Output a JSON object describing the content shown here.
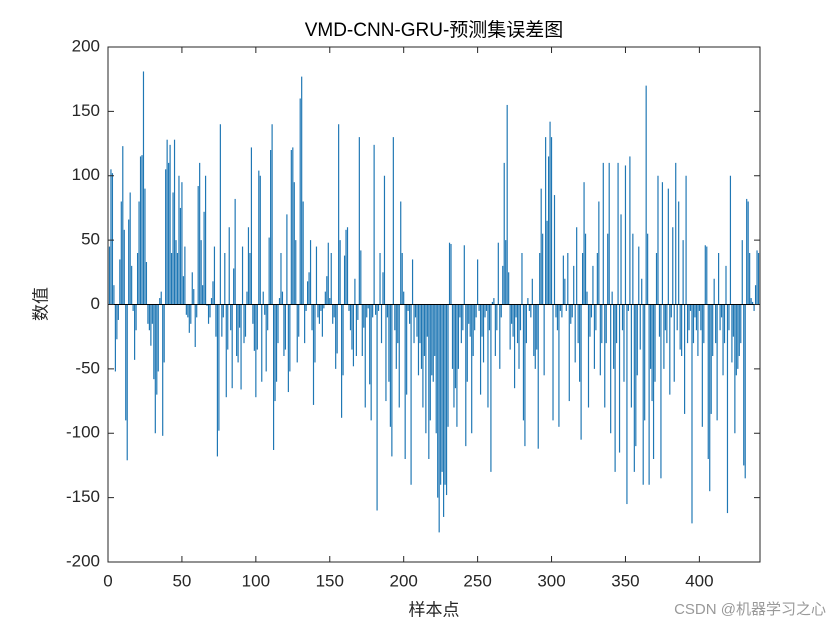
{
  "chart_data": {
    "type": "bar",
    "title": "VMD-CNN-GRU-预测集误差图",
    "xlabel": "样本点",
    "ylabel": "数值",
    "watermark": "CSDN @机器学习之心",
    "color": "#1f77b4",
    "xlim": [
      0,
      441
    ],
    "ylim": [
      -200,
      200
    ],
    "xticks": [
      0,
      50,
      100,
      150,
      200,
      250,
      300,
      350,
      400
    ],
    "yticks": [
      -200,
      -150,
      -100,
      -50,
      0,
      50,
      100,
      150,
      200
    ],
    "x": [
      1,
      2,
      3,
      4,
      5,
      6,
      7,
      8,
      9,
      10,
      11,
      12,
      13,
      14,
      15,
      16,
      17,
      18,
      19,
      20,
      21,
      22,
      23,
      24,
      25,
      26,
      27,
      28,
      29,
      30,
      31,
      32,
      33,
      34,
      35,
      36,
      37,
      38,
      39,
      40,
      41,
      42,
      43,
      44,
      45,
      46,
      47,
      48,
      49,
      50,
      51,
      52,
      53,
      54,
      55,
      56,
      57,
      58,
      59,
      60,
      61,
      62,
      63,
      64,
      65,
      66,
      67,
      68,
      69,
      70,
      71,
      72,
      73,
      74,
      75,
      76,
      77,
      78,
      79,
      80,
      81,
      82,
      83,
      84,
      85,
      86,
      87,
      88,
      89,
      90,
      91,
      92,
      93,
      94,
      95,
      96,
      97,
      98,
      99,
      100,
      101,
      102,
      103,
      104,
      105,
      106,
      107,
      108,
      109,
      110,
      111,
      112,
      113,
      114,
      115,
      116,
      117,
      118,
      119,
      120,
      121,
      122,
      123,
      124,
      125,
      126,
      127,
      128,
      129,
      130,
      131,
      132,
      133,
      134,
      135,
      136,
      137,
      138,
      139,
      140,
      141,
      142,
      143,
      144,
      145,
      146,
      147,
      148,
      149,
      150,
      151,
      152,
      153,
      154,
      155,
      156,
      157,
      158,
      159,
      160,
      161,
      162,
      163,
      164,
      165,
      166,
      167,
      168,
      169,
      170,
      171,
      172,
      173,
      174,
      175,
      176,
      177,
      178,
      179,
      180,
      181,
      182,
      183,
      184,
      185,
      186,
      187,
      188,
      189,
      190,
      191,
      192,
      193,
      194,
      195,
      196,
      197,
      198,
      199,
      200,
      201,
      202,
      203,
      204,
      205,
      206,
      207,
      208,
      209,
      210,
      211,
      212,
      213,
      214,
      215,
      216,
      217,
      218,
      219,
      220,
      221,
      222,
      223,
      224,
      225,
      226,
      227,
      228,
      229,
      230,
      231,
      232,
      233,
      234,
      235,
      236,
      237,
      238,
      239,
      240,
      241,
      242,
      243,
      244,
      245,
      246,
      247,
      248,
      249,
      250,
      251,
      252,
      253,
      254,
      255,
      256,
      257,
      258,
      259,
      260,
      261,
      262,
      263,
      264,
      265,
      266,
      267,
      268,
      269,
      270,
      271,
      272,
      273,
      274,
      275,
      276,
      277,
      278,
      279,
      280,
      281,
      282,
      283,
      284,
      285,
      286,
      287,
      288,
      289,
      290,
      291,
      292,
      293,
      294,
      295,
      296,
      297,
      298,
      299,
      300,
      301,
      302,
      303,
      304,
      305,
      306,
      307,
      308,
      309,
      310,
      311,
      312,
      313,
      314,
      315,
      316,
      317,
      318,
      319,
      320,
      321,
      322,
      323,
      324,
      325,
      326,
      327,
      328,
      329,
      330,
      331,
      332,
      333,
      334,
      335,
      336,
      337,
      338,
      339,
      340,
      341,
      342,
      343,
      344,
      345,
      346,
      347,
      348,
      349,
      350,
      351,
      352,
      353,
      354,
      355,
      356,
      357,
      358,
      359,
      360,
      361,
      362,
      363,
      364,
      365,
      366,
      367,
      368,
      369,
      370,
      371,
      372,
      373,
      374,
      375,
      376,
      377,
      378,
      379,
      380,
      381,
      382,
      383,
      384,
      385,
      386,
      387,
      388,
      389,
      390,
      391,
      392,
      393,
      394,
      395,
      396,
      397,
      398,
      399,
      400,
      401,
      402,
      403,
      404,
      405,
      406,
      407,
      408,
      409,
      410,
      411,
      412,
      413,
      414,
      415,
      416,
      417,
      418,
      419,
      420,
      421,
      422,
      423,
      424,
      425,
      426,
      427,
      428,
      429,
      430,
      431,
      432,
      433,
      434,
      435,
      436,
      437,
      438,
      439,
      440
    ],
    "values": [
      45,
      105,
      102,
      15,
      -52,
      -27,
      -12,
      35,
      80,
      123,
      58,
      -90,
      -121,
      66,
      87,
      30,
      -5,
      -43,
      -20,
      40,
      80,
      115,
      116,
      181,
      90,
      33,
      -15,
      -20,
      -32,
      -15,
      -58,
      -100,
      -70,
      -52,
      5,
      10,
      -102,
      -45,
      105,
      128,
      110,
      124,
      40,
      87,
      128,
      50,
      40,
      100,
      75,
      95,
      22,
      45,
      -8,
      -10,
      -22,
      -15,
      25,
      12,
      -33,
      -10,
      92,
      110,
      50,
      15,
      72,
      100,
      -1,
      -15,
      -10,
      5,
      18,
      45,
      -25,
      -118,
      -98,
      140,
      -25,
      -10,
      40,
      -72,
      -35,
      60,
      -20,
      -65,
      28,
      82,
      -40,
      -45,
      -18,
      -66,
      45,
      -30,
      -25,
      10,
      60,
      40,
      122,
      -15,
      -36,
      -72,
      -35,
      104,
      100,
      -60,
      10,
      -8,
      -52,
      -20,
      52,
      120,
      140,
      -113,
      -75,
      -60,
      -30,
      5,
      40,
      10,
      -40,
      -35,
      70,
      -68,
      -52,
      120,
      122,
      95,
      50,
      -45,
      -25,
      160,
      177,
      80,
      -30,
      -5,
      18,
      25,
      50,
      -20,
      -78,
      -45,
      45,
      -10,
      -15,
      -5,
      -25,
      -3,
      10,
      22,
      48,
      5,
      40,
      -15,
      -10,
      -50,
      -38,
      140,
      50,
      -88,
      -55,
      38,
      58,
      60,
      -5,
      -20,
      -35,
      -48,
      20,
      -40,
      -12,
      130,
      42,
      -40,
      -18,
      -80,
      -10,
      -3,
      -62,
      -90,
      -10,
      124,
      -8,
      -160,
      -5,
      40,
      -30,
      25,
      100,
      -75,
      -10,
      -60,
      -95,
      -118,
      130,
      -20,
      -50,
      -30,
      -80,
      80,
      40,
      10,
      -120,
      -70,
      -5,
      -15,
      -140,
      35,
      -30,
      -10,
      -25,
      -55,
      -30,
      -50,
      -80,
      -40,
      -100,
      -25,
      -120,
      -90,
      -55,
      -60,
      -40,
      -100,
      -150,
      -177,
      -140,
      -130,
      -165,
      -140,
      -148,
      -95,
      48,
      47,
      -50,
      -80,
      -65,
      -95,
      -50,
      -10,
      -30,
      -20,
      46,
      -110,
      -60,
      -15,
      -25,
      -100,
      -40,
      -20,
      -10,
      35,
      -5,
      -70,
      -25,
      -45,
      -10,
      -5,
      -80,
      -20,
      -130,
      2,
      5,
      -40,
      -20,
      48,
      -50,
      -10,
      30,
      110,
      50,
      155,
      25,
      -35,
      -15,
      -25,
      -65,
      -10,
      -30,
      -50,
      -20,
      40,
      -90,
      -110,
      -30,
      5,
      -5,
      -10,
      20,
      -40,
      -50,
      -35,
      -112,
      40,
      90,
      55,
      -55,
      130,
      65,
      115,
      142,
      130,
      -90,
      85,
      -10,
      -20,
      -95,
      -5,
      -10,
      38,
      20,
      -5,
      40,
      -75,
      -15,
      -10,
      30,
      -45,
      60,
      -30,
      -60,
      -105,
      40,
      95,
      55,
      10,
      -80,
      -25,
      -10,
      30,
      -50,
      -20,
      40,
      80,
      -55,
      -30,
      110,
      -80,
      -30,
      55,
      110,
      -100,
      10,
      -50,
      -130,
      -30,
      110,
      -115,
      70,
      -20,
      -60,
      108,
      -155,
      -5,
      115,
      -80,
      55,
      -130,
      -110,
      -55,
      45,
      -35,
      20,
      -140,
      -90,
      170,
      55,
      -140,
      -50,
      -75,
      -120,
      -60,
      40,
      100,
      -25,
      -135,
      95,
      -50,
      -20,
      -30,
      90,
      -70,
      -10,
      60,
      -60,
      110,
      -20,
      80,
      -35,
      -40,
      50,
      -85,
      100,
      -30,
      -20,
      -5,
      -170,
      -30,
      -10,
      -20,
      -40,
      -5,
      -20,
      -95,
      -30,
      46,
      45,
      -120,
      -145,
      -85,
      -40,
      20,
      -30,
      -90,
      40,
      -20,
      -10,
      -55,
      -30,
      30,
      -162,
      -20,
      100,
      -45,
      -25,
      -100,
      -55,
      -50,
      -40,
      -30,
      50,
      -125,
      -135,
      82,
      80,
      40,
      5,
      2,
      -5,
      15,
      42,
      40
    ]
  }
}
